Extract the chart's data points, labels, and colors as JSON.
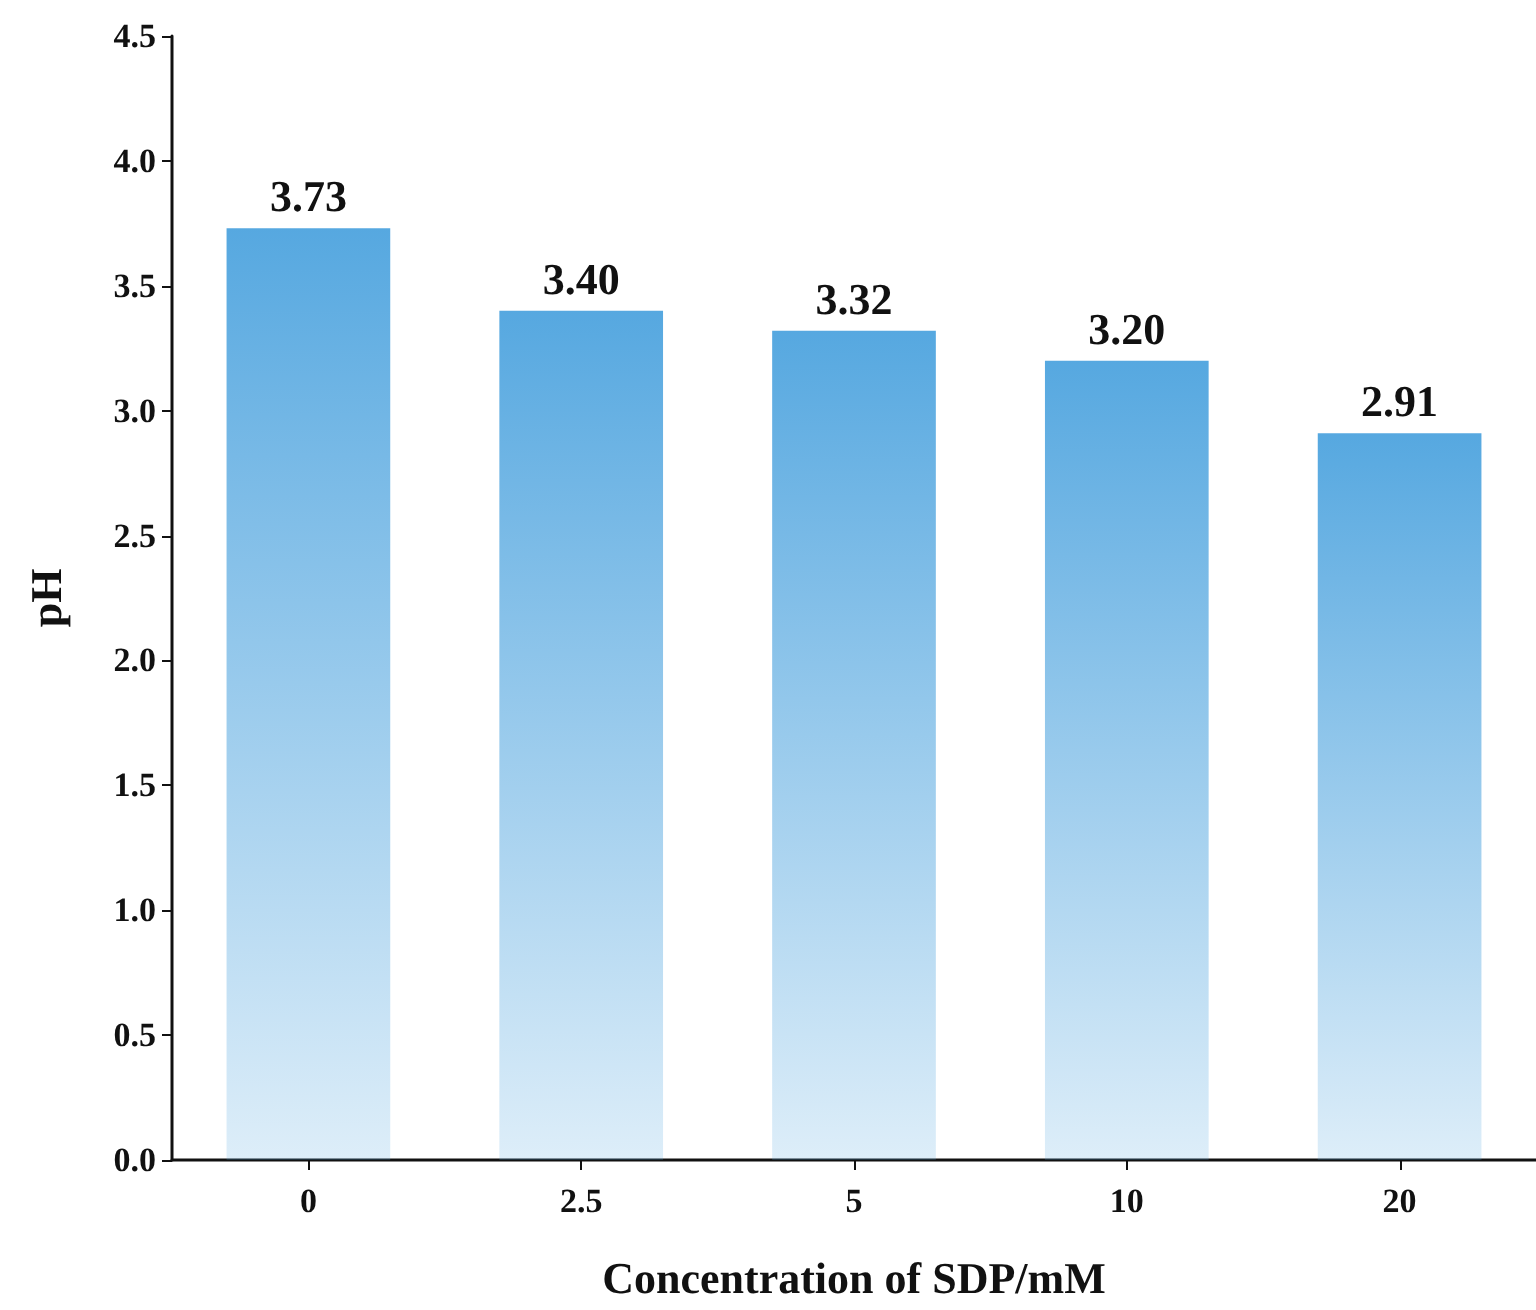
{
  "chart_data": {
    "type": "bar",
    "xlabel": "Concentration of SDP/mM",
    "ylabel": "pH",
    "categories": [
      "0",
      "2.5",
      "5",
      "10",
      "20"
    ],
    "values": [
      3.73,
      3.4,
      3.32,
      3.2,
      2.91
    ],
    "value_labels": [
      "3.73",
      "3.40",
      "3.32",
      "3.20",
      "2.91"
    ],
    "color": "#56a8e0",
    "ylim": [
      0,
      4.5
    ],
    "yticks": [
      {
        "value": 0,
        "label": "0.0"
      },
      {
        "value": 0.5,
        "label": "0.5"
      },
      {
        "value": 1,
        "label": "1.0"
      },
      {
        "value": 1.5,
        "label": "1.5"
      },
      {
        "value": 2,
        "label": "2.0"
      },
      {
        "value": 2.5,
        "label": "2.5"
      },
      {
        "value": 3,
        "label": "3.0"
      },
      {
        "value": 3.5,
        "label": "3.5"
      },
      {
        "value": 4,
        "label": "4.0"
      },
      {
        "value": 4.5,
        "label": "4.5"
      }
    ],
    "grid": false
  }
}
